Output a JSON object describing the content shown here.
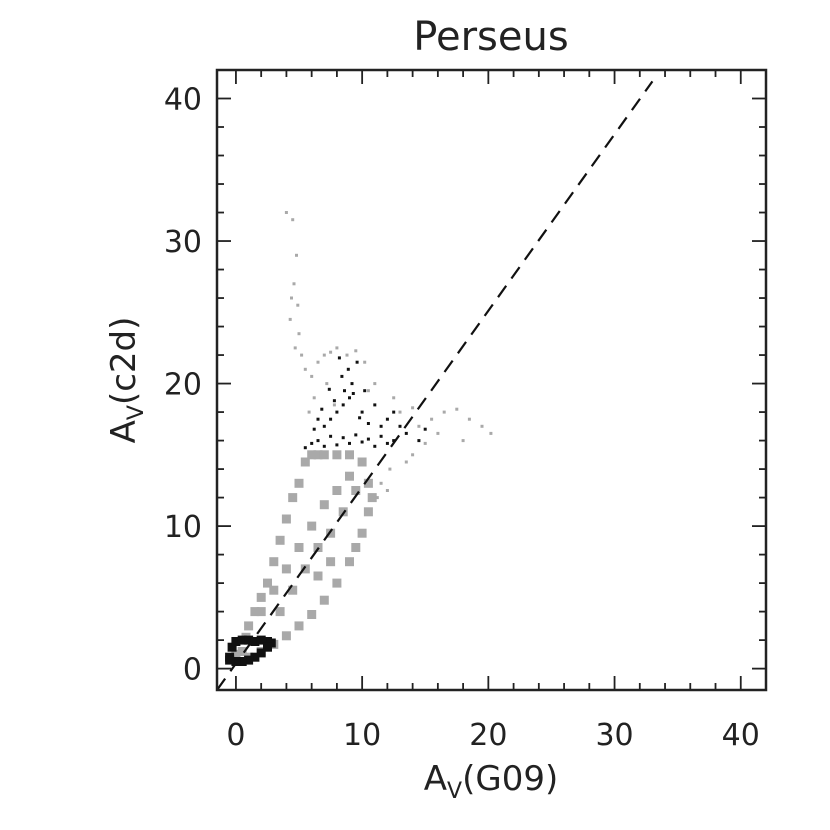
{
  "chart_data": {
    "type": "scatter",
    "title": "Perseus",
    "xlabel": {
      "main": "A",
      "sub": "V",
      "suffix": "(G09)"
    },
    "ylabel": {
      "main": "A",
      "sub": "V",
      "suffix": "(c2d)"
    },
    "xlim": [
      -1.5,
      42
    ],
    "ylim": [
      -1.5,
      42
    ],
    "xticks": [
      0,
      10,
      20,
      30,
      40
    ],
    "yticks": [
      0,
      10,
      20,
      30,
      40
    ],
    "xtick_labels": [
      "0",
      "10",
      "20",
      "30",
      "40"
    ],
    "ytick_labels": [
      "0",
      "10",
      "20",
      "30",
      "40"
    ],
    "grid": false,
    "reference_line": {
      "style": "dashed",
      "color": "#111111",
      "x": [
        -1.5,
        33
      ],
      "y": [
        -1.5,
        41.2
      ]
    },
    "colors": {
      "gray_points": "#a9a9a9",
      "black_points": "#111111",
      "axis": "#222222"
    },
    "series": [
      {
        "style": "gray-dense-band",
        "color": "#a9a9a9",
        "points": [
          [
            0,
            1
          ],
          [
            0.5,
            1.2
          ],
          [
            0.8,
            2.2
          ],
          [
            1.0,
            3.0
          ],
          [
            1.5,
            4.0
          ],
          [
            2.0,
            5.0
          ],
          [
            2.5,
            6.0
          ],
          [
            3.0,
            7.5
          ],
          [
            3.5,
            9.0
          ],
          [
            4.0,
            10.5
          ],
          [
            4.5,
            12.0
          ],
          [
            5.0,
            13.0
          ],
          [
            5.5,
            14.5
          ],
          [
            6.0,
            15.0
          ],
          [
            6.5,
            15.0
          ],
          [
            7.0,
            15.0
          ],
          [
            8.0,
            15.0
          ],
          [
            9.0,
            15.0
          ],
          [
            10.0,
            14.5
          ],
          [
            10.5,
            13.0
          ],
          [
            10.8,
            12.0
          ],
          [
            10.5,
            11.0
          ],
          [
            10.0,
            9.5
          ],
          [
            9.5,
            8.5
          ],
          [
            9.0,
            7.5
          ],
          [
            8.0,
            6.0
          ],
          [
            7.0,
            4.8
          ],
          [
            6.0,
            3.8
          ],
          [
            5.0,
            3.0
          ],
          [
            4.0,
            2.3
          ],
          [
            3.0,
            1.7
          ],
          [
            2.0,
            1.2
          ],
          [
            1.0,
            0.8
          ],
          [
            0,
            1
          ],
          [
            2.0,
            4.0
          ],
          [
            3.0,
            5.5
          ],
          [
            4.0,
            7.0
          ],
          [
            5.0,
            8.5
          ],
          [
            6.0,
            10.0
          ],
          [
            7.0,
            11.5
          ],
          [
            8.0,
            12.5
          ],
          [
            9.0,
            13.5
          ],
          [
            5.5,
            7.0
          ],
          [
            6.5,
            8.5
          ],
          [
            7.5,
            9.5
          ],
          [
            8.5,
            11.0
          ],
          [
            9.5,
            12.5
          ],
          [
            3.5,
            4.0
          ],
          [
            4.5,
            5.5
          ],
          [
            6.5,
            6.5
          ],
          [
            7.5,
            7.5
          ]
        ]
      },
      {
        "style": "gray-scatter",
        "color": "#a9a9a9",
        "points": [
          [
            4.0,
            32.0
          ],
          [
            4.5,
            31.5
          ],
          [
            4.8,
            29.0
          ],
          [
            4.6,
            27.0
          ],
          [
            4.4,
            26.0
          ],
          [
            4.9,
            25.5
          ],
          [
            4.3,
            24.5
          ],
          [
            5.0,
            23.5
          ],
          [
            4.7,
            22.5
          ],
          [
            5.2,
            22.0
          ],
          [
            5.5,
            21.0
          ],
          [
            6.0,
            20.5
          ],
          [
            6.5,
            21.5
          ],
          [
            7.0,
            22.0
          ],
          [
            7.5,
            22.2
          ],
          [
            8.0,
            22.5
          ],
          [
            8.8,
            22.0
          ],
          [
            9.5,
            22.3
          ],
          [
            10.2,
            21.5
          ],
          [
            7.2,
            20.0
          ],
          [
            6.2,
            19.0
          ],
          [
            5.8,
            18.0
          ],
          [
            7.8,
            18.5
          ],
          [
            10.5,
            19.5
          ],
          [
            11.0,
            20.0
          ],
          [
            12.5,
            19.0
          ],
          [
            13.0,
            18.0
          ],
          [
            14.0,
            18.3
          ],
          [
            14.5,
            17.0
          ],
          [
            15.5,
            17.5
          ],
          [
            16.5,
            18.0
          ],
          [
            17.5,
            18.2
          ],
          [
            18.5,
            17.5
          ],
          [
            19.5,
            17.0
          ],
          [
            20.2,
            16.5
          ],
          [
            18.0,
            16.0
          ],
          [
            16.0,
            16.5
          ],
          [
            15.0,
            15.8
          ],
          [
            14.0,
            15.0
          ],
          [
            13.5,
            14.5
          ],
          [
            12.2,
            14.0
          ],
          [
            11.5,
            13.0
          ],
          [
            12.0,
            12.5
          ],
          [
            11.2,
            12.0
          ]
        ]
      },
      {
        "style": "black-scatter",
        "color": "#111111",
        "points": [
          [
            5.5,
            15.5
          ],
          [
            6.0,
            15.8
          ],
          [
            6.5,
            16.0
          ],
          [
            7.0,
            15.6
          ],
          [
            7.5,
            16.3
          ],
          [
            8.0,
            15.7
          ],
          [
            8.5,
            16.2
          ],
          [
            9.0,
            15.8
          ],
          [
            9.5,
            16.4
          ],
          [
            10.0,
            15.9
          ],
          [
            10.5,
            16.1
          ],
          [
            11.0,
            15.6
          ],
          [
            11.5,
            16.3
          ],
          [
            12.0,
            15.8
          ],
          [
            12.5,
            16.0
          ],
          [
            7.0,
            17.0
          ],
          [
            7.5,
            17.5
          ],
          [
            8.0,
            18.0
          ],
          [
            8.5,
            18.5
          ],
          [
            9.0,
            19.0
          ],
          [
            8.6,
            19.5
          ],
          [
            9.2,
            20.0
          ],
          [
            8.4,
            20.5
          ],
          [
            8.9,
            21.0
          ],
          [
            9.3,
            19.3
          ],
          [
            7.8,
            18.8
          ],
          [
            10.0,
            18.0
          ],
          [
            10.5,
            17.2
          ],
          [
            9.8,
            17.6
          ],
          [
            6.5,
            17.5
          ],
          [
            6.2,
            16.8
          ],
          [
            11.5,
            17.0
          ],
          [
            12.0,
            17.5
          ],
          [
            12.5,
            18.0
          ],
          [
            13.0,
            17.0
          ],
          [
            11.0,
            18.5
          ],
          [
            10.2,
            19.5
          ],
          [
            9.6,
            21.5
          ],
          [
            8.2,
            21.8
          ],
          [
            7.4,
            19.6
          ],
          [
            6.8,
            18.2
          ],
          [
            13.5,
            16.5
          ],
          [
            14.5,
            16.0
          ],
          [
            15.0,
            16.8
          ]
        ]
      },
      {
        "style": "black-dense-band",
        "color": "#111111",
        "points": [
          [
            -0.5,
            0.8
          ],
          [
            -0.3,
            1.5
          ],
          [
            0.0,
            1.9
          ],
          [
            0.5,
            2.0
          ],
          [
            1.0,
            2.0
          ],
          [
            1.5,
            1.9
          ],
          [
            2.0,
            2.0
          ],
          [
            2.5,
            1.9
          ],
          [
            2.8,
            1.8
          ],
          [
            2.5,
            1.5
          ],
          [
            2.0,
            1.1
          ],
          [
            1.5,
            0.8
          ],
          [
            1.0,
            0.6
          ],
          [
            0.5,
            0.5
          ],
          [
            0.0,
            0.5
          ],
          [
            -0.5,
            0.6
          ]
        ]
      }
    ]
  }
}
